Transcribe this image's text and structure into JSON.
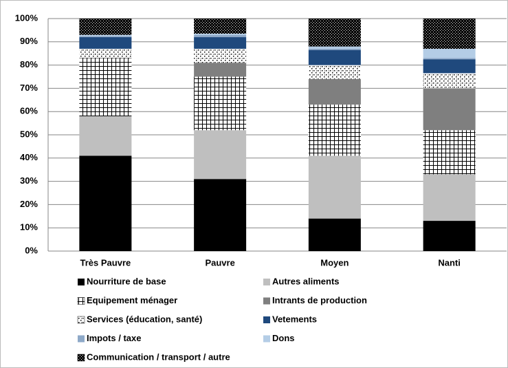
{
  "chart_data": {
    "type": "stacked_bar",
    "categories": [
      "Très Pauvre",
      "Pauvre",
      "Moyen",
      "Nanti"
    ],
    "series": [
      {
        "name": "Nourriture de base",
        "color": "#000000",
        "values": [
          41,
          31,
          14,
          13
        ]
      },
      {
        "name": "Autres aliments",
        "color": "#bfbfbf",
        "values": [
          17,
          21,
          27,
          20
        ]
      },
      {
        "name": "Equipement ménager",
        "color": "#ffffff",
        "pattern": "grid",
        "values": [
          25,
          23,
          22,
          19
        ]
      },
      {
        "name": "Intrants de production",
        "color": "#7f7f7f",
        "values": [
          0,
          6,
          11,
          18
        ]
      },
      {
        "name": "Services (éducation, santé)",
        "color": "#ffffff",
        "pattern": "dots",
        "values": [
          4,
          6,
          6,
          6.5
        ]
      },
      {
        "name": "Vetements",
        "color": "#1f497d",
        "values": [
          5,
          5,
          6.5,
          6
        ]
      },
      {
        "name": "Impots / taxe",
        "color": "#8ea9c8",
        "values": [
          0.5,
          1,
          0.5,
          0.5
        ]
      },
      {
        "name": "Dons",
        "color": "#b4cde6",
        "values": [
          0.5,
          0.5,
          1,
          4
        ]
      },
      {
        "name": "Communication / transport / autre",
        "color": "#000000",
        "pattern": "light-dots",
        "values": [
          7,
          6.5,
          12,
          13
        ]
      }
    ],
    "ylim": [
      0,
      100
    ],
    "yticks": [
      {
        "value": 0,
        "label": "0%"
      },
      {
        "value": 10,
        "label": "10%"
      },
      {
        "value": 20,
        "label": "20%"
      },
      {
        "value": 30,
        "label": "30%"
      },
      {
        "value": 40,
        "label": "40%"
      },
      {
        "value": 50,
        "label": "50%"
      },
      {
        "value": 60,
        "label": "60%"
      },
      {
        "value": 70,
        "label": "70%"
      },
      {
        "value": 80,
        "label": "80%"
      },
      {
        "value": 90,
        "label": "90%"
      },
      {
        "value": 100,
        "label": "100%"
      }
    ],
    "grid": true
  }
}
